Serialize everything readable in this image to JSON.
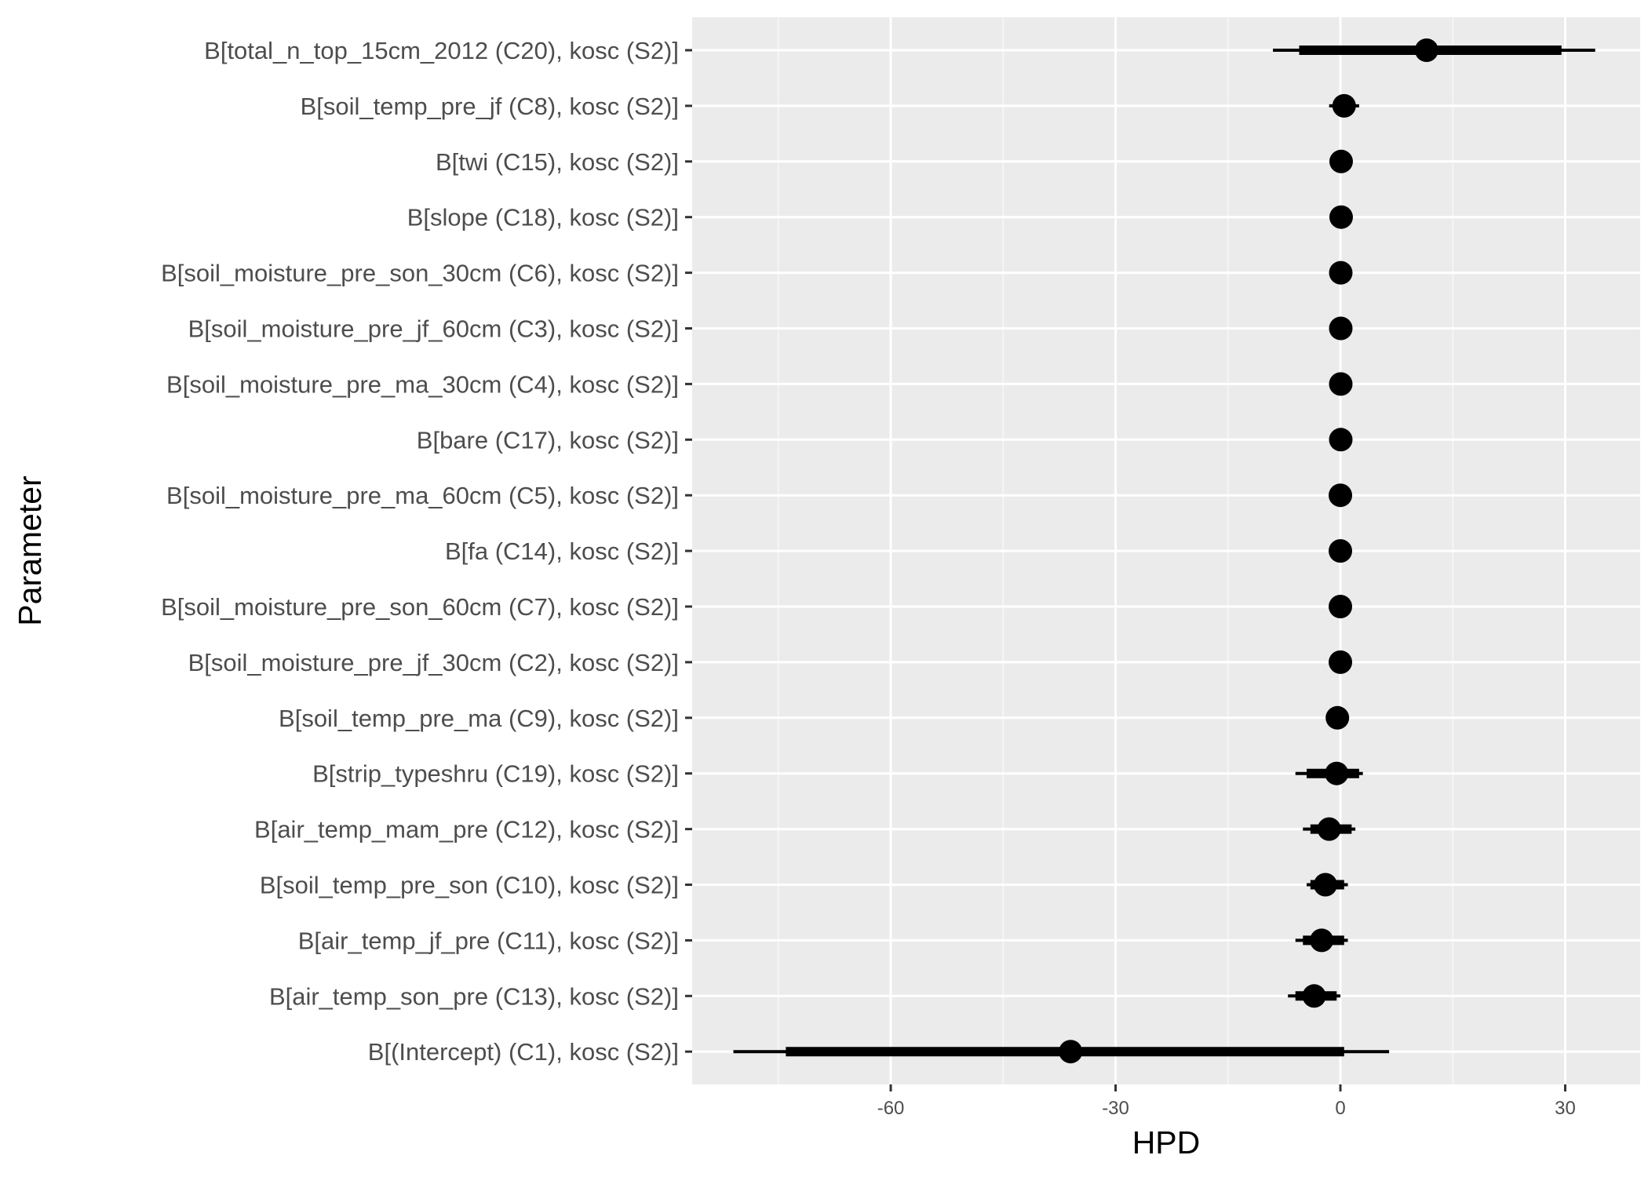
{
  "colors": {
    "panel_background": "#ebebeb",
    "gridline_major": "#ffffff",
    "gridline_minor": "#f5f5f5",
    "mark": "#000000",
    "tick_text": "#4d4d4d",
    "axis_title": "#000000"
  },
  "chart_data": {
    "type": "interval-dot",
    "title": "",
    "xlabel": "HPD",
    "ylabel": "Parameter",
    "xlim": [
      -86.5,
      40
    ],
    "xticks": [
      -60,
      -30,
      0,
      30
    ],
    "xtick_labels": [
      "-60",
      "-30",
      "0",
      "30"
    ],
    "grid": true,
    "legend": "none",
    "parameters": [
      {
        "label": "B[total_n_top_15cm_2012 (C20), kosc (S2)]",
        "median": 11.5,
        "inner": [
          -5.5,
          29.5
        ],
        "outer": [
          -9,
          34
        ]
      },
      {
        "label": "B[soil_temp_pre_jf (C8), kosc (S2)]",
        "median": 0.5,
        "inner": [
          -0.6,
          1.8
        ],
        "outer": [
          -1.5,
          2.5
        ]
      },
      {
        "label": "B[twi (C15), kosc (S2)]",
        "median": 0.1,
        "inner": [
          -0.3,
          0.5
        ],
        "outer": [
          -0.6,
          0.8
        ]
      },
      {
        "label": "B[slope (C18), kosc (S2)]",
        "median": 0.1,
        "inner": [
          -0.2,
          0.4
        ],
        "outer": [
          -0.5,
          0.7
        ]
      },
      {
        "label": "B[soil_moisture_pre_son_30cm (C6), kosc (S2)]",
        "median": 0.05,
        "inner": [
          -0.2,
          0.3
        ],
        "outer": [
          -0.4,
          0.5
        ]
      },
      {
        "label": "B[soil_moisture_pre_jf_60cm (C3), kosc (S2)]",
        "median": 0.05,
        "inner": [
          -0.2,
          0.3
        ],
        "outer": [
          -0.4,
          0.5
        ]
      },
      {
        "label": "B[soil_moisture_pre_ma_30cm (C4), kosc (S2)]",
        "median": 0.05,
        "inner": [
          -0.2,
          0.3
        ],
        "outer": [
          -0.4,
          0.5
        ]
      },
      {
        "label": "B[bare (C17), kosc (S2)]",
        "median": 0.05,
        "inner": [
          -0.2,
          0.3
        ],
        "outer": [
          -0.4,
          0.5
        ]
      },
      {
        "label": "B[soil_moisture_pre_ma_60cm (C5), kosc (S2)]",
        "median": 0.0,
        "inner": [
          -0.2,
          0.2
        ],
        "outer": [
          -0.4,
          0.4
        ]
      },
      {
        "label": "B[fa (C14), kosc (S2)]",
        "median": 0.0,
        "inner": [
          -0.2,
          0.2
        ],
        "outer": [
          -0.4,
          0.4
        ]
      },
      {
        "label": "B[soil_moisture_pre_son_60cm (C7), kosc (S2)]",
        "median": 0.0,
        "inner": [
          -0.2,
          0.2
        ],
        "outer": [
          -0.4,
          0.4
        ]
      },
      {
        "label": "B[soil_moisture_pre_jf_30cm (C2), kosc (S2)]",
        "median": 0.0,
        "inner": [
          -0.2,
          0.2
        ],
        "outer": [
          -0.4,
          0.4
        ]
      },
      {
        "label": "B[soil_temp_pre_ma (C9), kosc (S2)]",
        "median": -0.4,
        "inner": [
          -0.8,
          0.0
        ],
        "outer": [
          -1.2,
          0.3
        ]
      },
      {
        "label": "B[strip_typeshru (C19), kosc (S2)]",
        "median": -0.5,
        "inner": [
          -4.5,
          2.5
        ],
        "outer": [
          -6,
          3
        ]
      },
      {
        "label": "B[air_temp_mam_pre (C12), kosc (S2)]",
        "median": -1.5,
        "inner": [
          -4,
          1.5
        ],
        "outer": [
          -5,
          2
        ]
      },
      {
        "label": "B[soil_temp_pre_son (C10), kosc (S2)]",
        "median": -2,
        "inner": [
          -4,
          0.5
        ],
        "outer": [
          -4.5,
          1
        ]
      },
      {
        "label": "B[air_temp_jf_pre (C11), kosc (S2)]",
        "median": -2.5,
        "inner": [
          -5,
          0.5
        ],
        "outer": [
          -6,
          1
        ]
      },
      {
        "label": "B[air_temp_son_pre (C13), kosc (S2)]",
        "median": -3.5,
        "inner": [
          -6,
          -0.5
        ],
        "outer": [
          -7,
          0
        ]
      },
      {
        "label": "B[(Intercept) (C1), kosc (S2)]",
        "median": -36,
        "inner": [
          -74,
          0.5
        ],
        "outer": [
          -81,
          6.5
        ]
      }
    ]
  }
}
